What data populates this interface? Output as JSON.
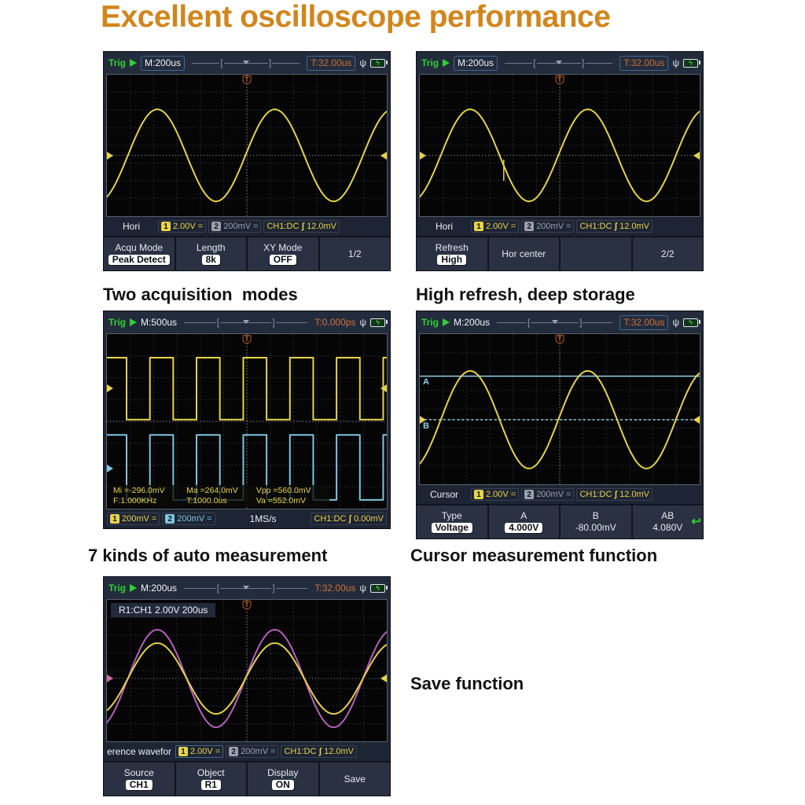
{
  "title": "Excellent oscilloscope performance",
  "accent_color": "#d2851c",
  "captions": {
    "two_acquisition": "Two acquisition  modes",
    "high_refresh": "High refresh, deep storage",
    "auto_measurement": "7 kinds of auto measurement",
    "cursor_measurement": "Cursor measurement function",
    "save_function": "Save function"
  },
  "icons": {
    "usb": "ψ",
    "battery_bolt": "ϟ",
    "trigger_marker": "T",
    "return_arrow": "↩"
  },
  "panels": {
    "p1": {
      "header": {
        "trig_status": "Trig",
        "timebase": "M:200us",
        "trigger_time": "T:32.00us"
      },
      "status": {
        "menu_label": "Hori",
        "ch1_num": "1",
        "ch1_scale": "2.00V",
        "ch1_coupling": "=",
        "ch2_num": "2",
        "ch2_scale": "200mV",
        "ch2_coupling": "=",
        "trigger_source": "CH1:DC",
        "edge_glyph": "ʃ",
        "trigger_level": "12.0mV"
      },
      "menu": [
        {
          "label": "Acqu Mode",
          "value": "Peak Detect"
        },
        {
          "label": "Length",
          "value": "8k"
        },
        {
          "label": "XY Mode",
          "value": "OFF"
        },
        {
          "label": "1/2",
          "value": ""
        }
      ]
    },
    "p2": {
      "header": {
        "trig_status": "Trig",
        "timebase": "M:200us",
        "trigger_time": "T:32.00us"
      },
      "status": {
        "menu_label": "Hori",
        "ch1_num": "1",
        "ch1_scale": "2.00V",
        "ch1_coupling": "=",
        "ch2_num": "2",
        "ch2_scale": "200mV",
        "ch2_coupling": "=",
        "trigger_source": "CH1:DC",
        "edge_glyph": "ʃ",
        "trigger_level": "12.0mV"
      },
      "menu": [
        {
          "label": "Refresh",
          "value": "High"
        },
        {
          "label": "Hor center",
          "value": ""
        },
        {
          "label": "",
          "value": ""
        },
        {
          "label": "2/2",
          "value": ""
        }
      ]
    },
    "p3": {
      "header": {
        "trig_status": "Trig",
        "timebase": "M:500us",
        "trigger_time": "T:0.000ps"
      },
      "measurements": [
        "Mi =-296.0mV",
        "Ma =264.0mV",
        "Vpp =560.0mV",
        "F:1.000KHz",
        "T:1000.0us",
        "Va =552.0mV"
      ],
      "status": {
        "ch1_num": "1",
        "ch1_scale": "200mV",
        "ch1_coupling": "=",
        "ch2_num": "2",
        "ch2_scale": "200mV",
        "ch2_coupling": "=",
        "sample_rate": "1MS/s",
        "trigger_source": "CH1:DC",
        "edge_glyph": "ʃ",
        "trigger_level": "0.00mV"
      }
    },
    "p4": {
      "header": {
        "trig_status": "Trig",
        "timebase": "M:200us",
        "trigger_time": "T:32.00us"
      },
      "status": {
        "menu_label": "Cursor",
        "ch1_num": "1",
        "ch1_scale": "2.00V",
        "ch1_coupling": "=",
        "ch2_num": "2",
        "ch2_scale": "200mV",
        "ch2_coupling": "=",
        "trigger_source": "CH1:DC",
        "edge_glyph": "ʃ",
        "trigger_level": "12.0mV"
      },
      "menu": [
        {
          "label": "Type",
          "value": "Voltage"
        },
        {
          "label": "A",
          "value": "4.000V"
        },
        {
          "label": "B",
          "value": "-80.00mV"
        },
        {
          "label": "AB",
          "value": "4.080V"
        }
      ]
    },
    "p5": {
      "header": {
        "trig_status": "Trig",
        "timebase": "M:200us",
        "trigger_time": "T:32.00us"
      },
      "ref_label": "R1:CH1 2.00V 200us",
      "status": {
        "menu_label": "erence wavefor",
        "ch1_num": "1",
        "ch1_scale": "2.00V",
        "ch1_coupling": "=",
        "ch2_num": "2",
        "ch2_scale": "200mV",
        "ch2_coupling": "=",
        "trigger_source": "CH1:DC",
        "edge_glyph": "ʃ",
        "trigger_level": "12.0mV"
      },
      "menu": [
        {
          "label": "Source",
          "value": "CH1"
        },
        {
          "label": "Object",
          "value": "R1"
        },
        {
          "label": "Display",
          "value": "ON"
        },
        {
          "label": "Save",
          "value": ""
        }
      ]
    }
  },
  "chart_data": [
    {
      "panel": "p1",
      "type": "line",
      "description": "CH1 sine wave, ~2.3 cycles, 2.00V/div, 200us/div",
      "grid_divisions": [
        12,
        8
      ],
      "timebase": "M:200us",
      "trigger_time": "T:32.00us",
      "series": [
        {
          "name": "CH1",
          "waveform": "sine",
          "color": "#e8d44a",
          "center": 0.57,
          "amplitude": 0.325,
          "period": 0.42,
          "peak_x": 0.18
        }
      ],
      "trigger_level": 0.57,
      "markers": [
        {
          "side": "left",
          "y": 0.57,
          "color": "#e8d44a"
        },
        {
          "side": "right",
          "y": 0.57,
          "color": "#e8d44a"
        }
      ]
    },
    {
      "panel": "p2",
      "type": "line",
      "description": "CH1 sine wave, high refresh deep storage",
      "grid_divisions": [
        12,
        8
      ],
      "timebase": "M:200us",
      "trigger_time": "T:32.00us",
      "series": [
        {
          "name": "CH1",
          "waveform": "sine",
          "color": "#e8d44a",
          "center": 0.57,
          "amplitude": 0.325,
          "period": 0.42,
          "peak_x": 0.18
        }
      ],
      "trigger_level": 0.57,
      "artifact": {
        "x": 0.3,
        "y1": 0.6,
        "y2": 0.75,
        "color": "#e8d44a"
      },
      "markers": [
        {
          "side": "left",
          "y": 0.57,
          "color": "#e8d44a"
        },
        {
          "side": "right",
          "y": 0.57,
          "color": "#e8d44a"
        }
      ]
    },
    {
      "panel": "p3",
      "type": "line",
      "description": "CH1 (yellow) and CH2 (cyan) 1kHz square waves with auto measurements",
      "grid_divisions": [
        12,
        8
      ],
      "timebase": "M:500us",
      "trigger_time": "T:0.000ps",
      "series": [
        {
          "name": "CH1",
          "waveform": "square",
          "color": "#e8d44a",
          "high": 0.135,
          "low": 0.49,
          "period": 0.1667,
          "phase": 0.013,
          "duty": 0.5
        },
        {
          "name": "CH2",
          "waveform": "square",
          "color": "#7fc6e0",
          "high": 0.578,
          "low": 0.95,
          "period": 0.1667,
          "phase": 0.013,
          "duty": 0.5
        }
      ],
      "trigger_level": 0.5,
      "measurements": {
        "Mi": "-296.0mV",
        "Ma": "264.0mV",
        "Vpp": "560.0mV",
        "F": "1.000KHz",
        "T": "1000.0us",
        "Va": "552.0mV"
      },
      "markers": [
        {
          "side": "left",
          "y": 0.31,
          "color": "#e8d44a"
        },
        {
          "side": "left",
          "y": 0.77,
          "color": "#7fc6e0"
        },
        {
          "side": "right",
          "y": 0.31,
          "color": "#e8d44a"
        }
      ]
    },
    {
      "panel": "p4",
      "type": "line",
      "description": "CH1 sine with voltage cursors A=4.000V, B=-80.00mV, AB=4.080V",
      "grid_divisions": [
        12,
        8
      ],
      "timebase": "M:200us",
      "trigger_time": "T:32.00us",
      "series": [
        {
          "name": "CH1",
          "waveform": "sine",
          "color": "#e8d44a",
          "center": 0.57,
          "amplitude": 0.325,
          "period": 0.42,
          "peak_x": 0.18
        }
      ],
      "trigger_level": 0.57,
      "cursors": [
        {
          "name": "A",
          "y": 0.28,
          "style": "solid",
          "color": "#8fd2e8",
          "value": "4.000V"
        },
        {
          "name": "B",
          "y": 0.57,
          "style": "dotted",
          "color": "#8fd2e8",
          "value": "-80.00mV"
        }
      ],
      "markers": [
        {
          "side": "left",
          "y": 0.57,
          "color": "#e8d44a"
        },
        {
          "side": "right",
          "y": 0.57,
          "color": "#e8d44a"
        }
      ]
    },
    {
      "panel": "p5",
      "type": "line",
      "description": "CH1 sine (yellow) with saved reference waveform R1 (magenta)",
      "grid_divisions": [
        12,
        8
      ],
      "timebase": "M:200us",
      "trigger_time": "T:32.00us",
      "series": [
        {
          "name": "R1",
          "waveform": "sine",
          "color": "#b95fc0",
          "center": 0.556,
          "amplitude": 0.345,
          "period": 0.42,
          "peak_x": 0.18
        },
        {
          "name": "CH1",
          "waveform": "sine",
          "color": "#e8d44a",
          "center": 0.556,
          "amplitude": 0.25,
          "period": 0.42,
          "peak_x": 0.18
        }
      ],
      "trigger_level": 0.556,
      "markers": [
        {
          "side": "left",
          "y": 0.556,
          "color": "#d46a9e"
        },
        {
          "side": "right",
          "y": 0.556,
          "color": "#e8d44a"
        }
      ]
    }
  ]
}
